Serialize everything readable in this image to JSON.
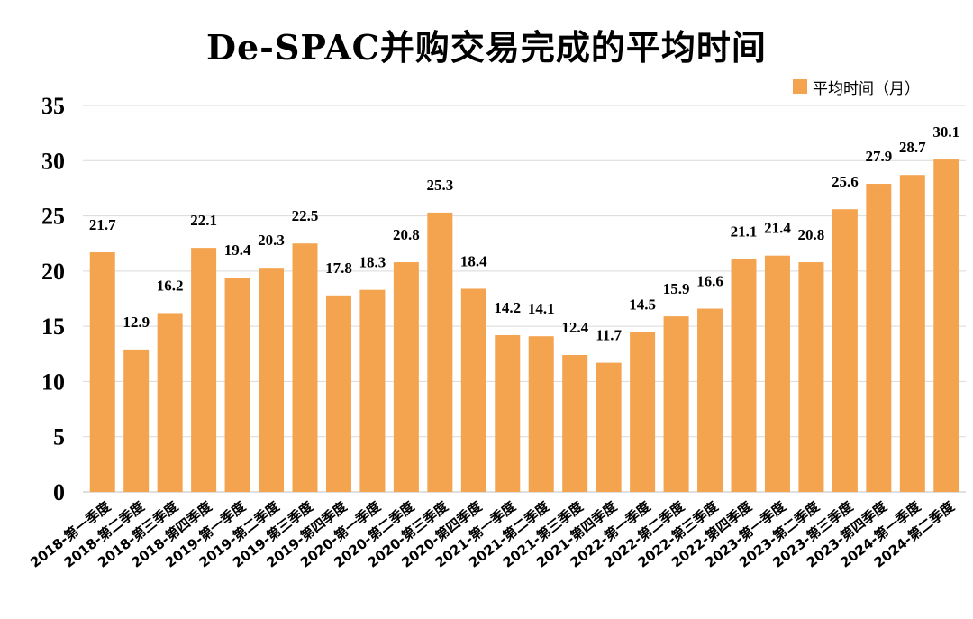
{
  "title": "De-SPAC并购交易完成的平均时间",
  "colors": {
    "bar": "#F4A44E"
  },
  "chart_data": {
    "type": "bar",
    "title": "De-SPAC并购交易完成的平均时间",
    "xlabel": "",
    "ylabel": "",
    "ylim": [
      0,
      35
    ],
    "yticks": [
      0,
      5,
      10,
      15,
      20,
      25,
      30,
      35
    ],
    "grid": true,
    "legend_position": "top-right",
    "categories": [
      "2018-第一季度",
      "2018-第二季度",
      "2018-第三季度",
      "2018-第四季度",
      "2019-第一季度",
      "2019-第二季度",
      "2019-第三季度",
      "2019-第四季度",
      "2020-第一季度",
      "2020-第二季度",
      "2020-第三季度",
      "2020-第四季度",
      "2021-第一季度",
      "2021-第二季度",
      "2021-第三季度",
      "2021-第四季度",
      "2022-第一季度",
      "2022-第二季度",
      "2022-第三季度",
      "2022-第四季度",
      "2023-第一季度",
      "2023-第二季度",
      "2023-第三季度",
      "2023-第四季度",
      "2024-第一季度",
      "2024-第二季度"
    ],
    "series": [
      {
        "name": "平均时间（月）",
        "values": [
          21.7,
          12.9,
          16.2,
          22.1,
          19.4,
          20.3,
          22.5,
          17.8,
          18.3,
          20.8,
          25.3,
          18.4,
          14.2,
          14.1,
          12.4,
          11.7,
          14.5,
          15.9,
          16.6,
          21.1,
          21.4,
          20.8,
          25.6,
          27.9,
          28.7,
          30.1
        ]
      }
    ]
  }
}
